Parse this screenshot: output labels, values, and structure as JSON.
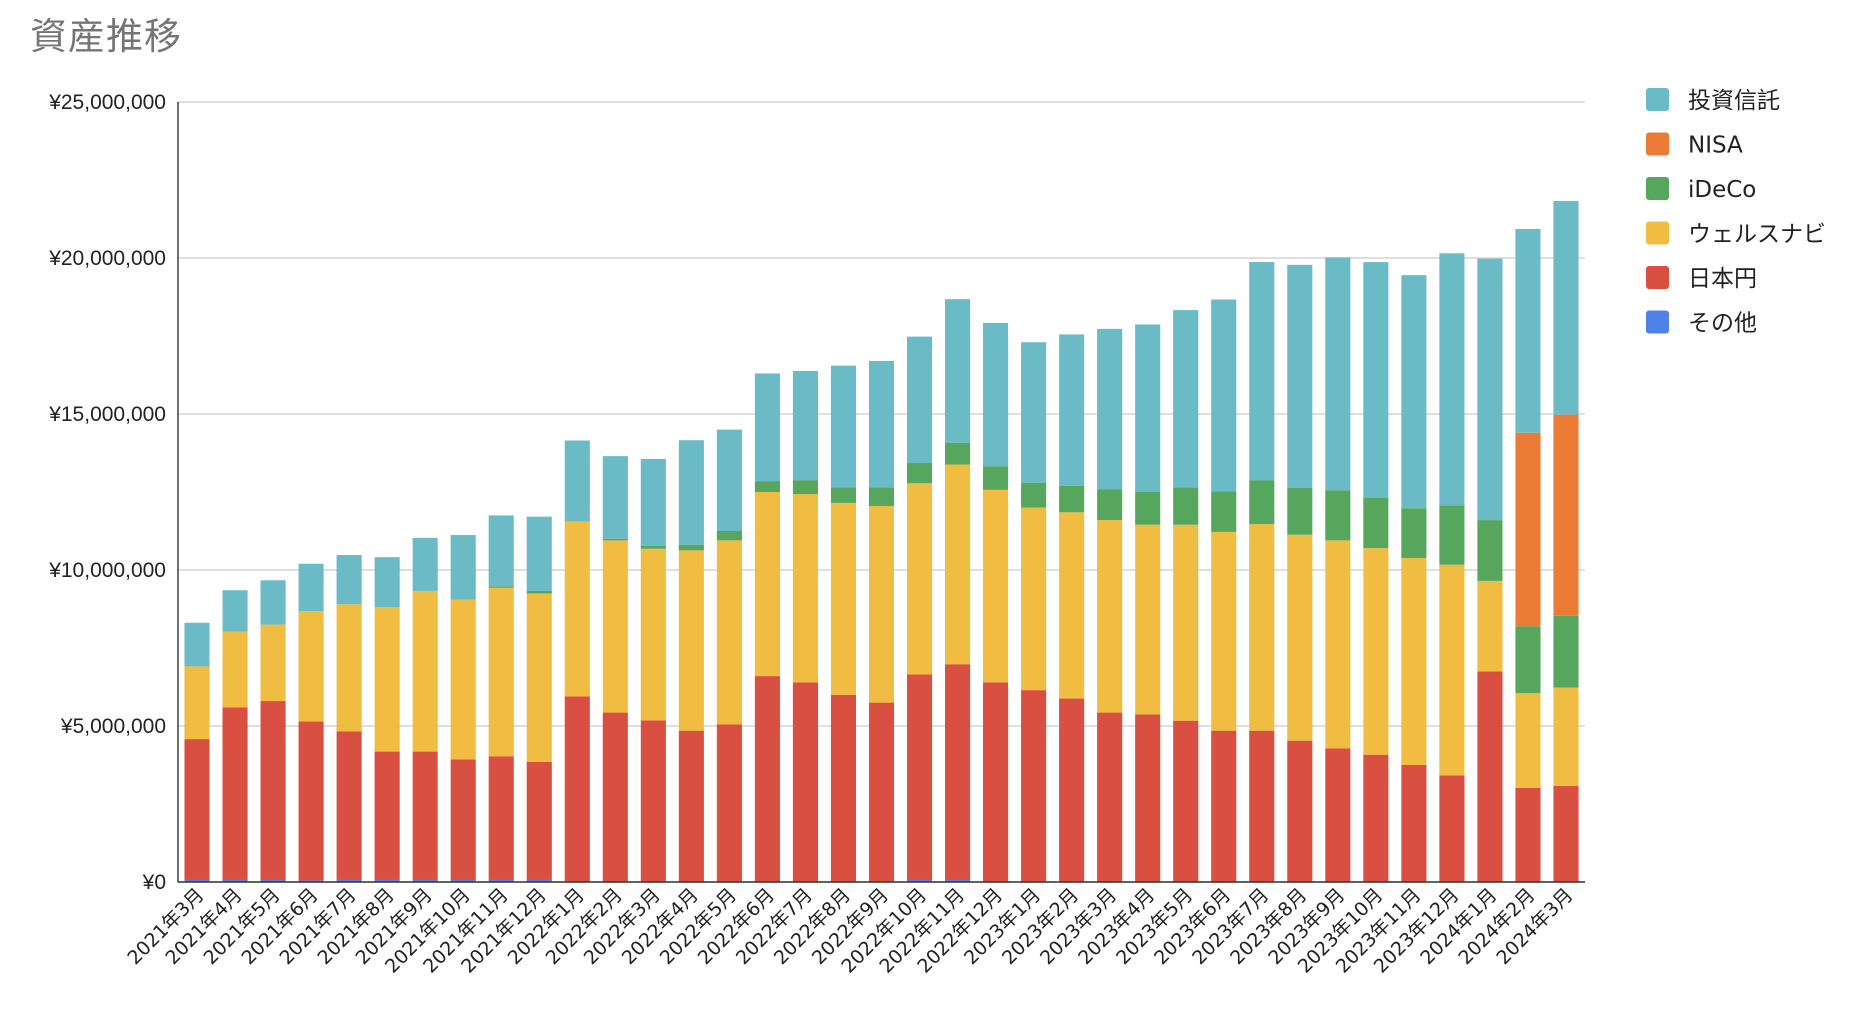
{
  "chart_data": {
    "type": "bar",
    "stacked": true,
    "title": "資産推移",
    "xlabel": "",
    "ylabel": "",
    "ylim": [
      0,
      25000000
    ],
    "yticks": [
      "¥0",
      "¥5,000,000",
      "¥10,000,000",
      "¥15,000,000",
      "¥20,000,000",
      "¥25,000,000"
    ],
    "ytick_values": [
      0,
      5000000,
      10000000,
      15000000,
      20000000,
      25000000
    ],
    "grid": true,
    "legend_position": "right",
    "categories": [
      "2021年3月",
      "2021年4月",
      "2021年5月",
      "2021年6月",
      "2021年7月",
      "2021年8月",
      "2021年9月",
      "2021年10月",
      "2021年11月",
      "2021年12月",
      "2022年1月",
      "2022年2月",
      "2022年3月",
      "2022年4月",
      "2022年5月",
      "2022年6月",
      "2022年7月",
      "2022年8月",
      "2022年9月",
      "2022年10月",
      "2022年11月",
      "2022年12月",
      "2023年1月",
      "2023年2月",
      "2023年3月",
      "2023年4月",
      "2023年5月",
      "2023年6月",
      "2023年7月",
      "2023年8月",
      "2023年9月",
      "2023年10月",
      "2023年11月",
      "2023年12月",
      "2024年1月",
      "2024年2月",
      "2024年3月"
    ],
    "series": [
      {
        "name": "その他",
        "color": "#4f81e6",
        "values": [
          80000,
          80000,
          80000,
          50000,
          80000,
          80000,
          80000,
          80000,
          80000,
          80000,
          0,
          0,
          0,
          0,
          0,
          0,
          0,
          0,
          0,
          80000,
          80000,
          0,
          0,
          0,
          0,
          0,
          0,
          0,
          0,
          0,
          0,
          0,
          0,
          0,
          0,
          0,
          0
        ]
      },
      {
        "name": "日本円",
        "color": "#d94f41",
        "values": [
          4500000,
          5520000,
          5720000,
          5100000,
          4750000,
          4100000,
          4100000,
          3850000,
          3950000,
          3770000,
          5950000,
          5430000,
          5180000,
          4850000,
          5050000,
          6600000,
          6400000,
          6000000,
          5750000,
          6570000,
          6900000,
          6400000,
          6150000,
          5880000,
          5430000,
          5370000,
          5170000,
          4850000,
          4850000,
          4530000,
          4280000,
          4080000,
          3750000,
          3420000,
          6750000,
          3020000,
          3080000
        ]
      },
      {
        "name": "ウェルスナビ",
        "color": "#f1bc42",
        "values": [
          2330000,
          2430000,
          2450000,
          3530000,
          4070000,
          4630000,
          5150000,
          5120000,
          5400000,
          5400000,
          5600000,
          5520000,
          5500000,
          5780000,
          5900000,
          5900000,
          6030000,
          6150000,
          6300000,
          6130000,
          6400000,
          6170000,
          5850000,
          5970000,
          6170000,
          6080000,
          6280000,
          6370000,
          6620000,
          6600000,
          6670000,
          6620000,
          6630000,
          6750000,
          2900000,
          3030000,
          3150000
        ]
      },
      {
        "name": "iDeCo",
        "color": "#57a65d",
        "values": [
          0,
          0,
          0,
          0,
          0,
          0,
          0,
          0,
          50000,
          80000,
          0,
          50000,
          100000,
          180000,
          300000,
          350000,
          450000,
          500000,
          600000,
          650000,
          700000,
          750000,
          800000,
          850000,
          980000,
          1050000,
          1200000,
          1300000,
          1400000,
          1500000,
          1600000,
          1620000,
          1600000,
          1900000,
          1950000,
          2150000,
          2300000
        ]
      },
      {
        "name": "NISA",
        "color": "#ec7b36",
        "values": [
          0,
          0,
          0,
          0,
          0,
          0,
          0,
          0,
          0,
          0,
          0,
          0,
          0,
          0,
          0,
          0,
          0,
          0,
          0,
          0,
          0,
          0,
          0,
          0,
          0,
          0,
          0,
          0,
          0,
          0,
          0,
          0,
          0,
          0,
          0,
          6200000,
          6450000
        ]
      },
      {
        "name": "投資信託",
        "color": "#6abbc5",
        "values": [
          1400000,
          1320000,
          1420000,
          1520000,
          1580000,
          1600000,
          1700000,
          2070000,
          2270000,
          2380000,
          2600000,
          2650000,
          2780000,
          3350000,
          3250000,
          3450000,
          3500000,
          3900000,
          4050000,
          4050000,
          4600000,
          4600000,
          4500000,
          4850000,
          5150000,
          5370000,
          5680000,
          6150000,
          7000000,
          7150000,
          7470000,
          7550000,
          7470000,
          8080000,
          8380000,
          6530000,
          6850000
        ]
      }
    ],
    "legend_order": [
      "投資信託",
      "NISA",
      "iDeCo",
      "ウェルスナビ",
      "日本円",
      "その他"
    ]
  }
}
